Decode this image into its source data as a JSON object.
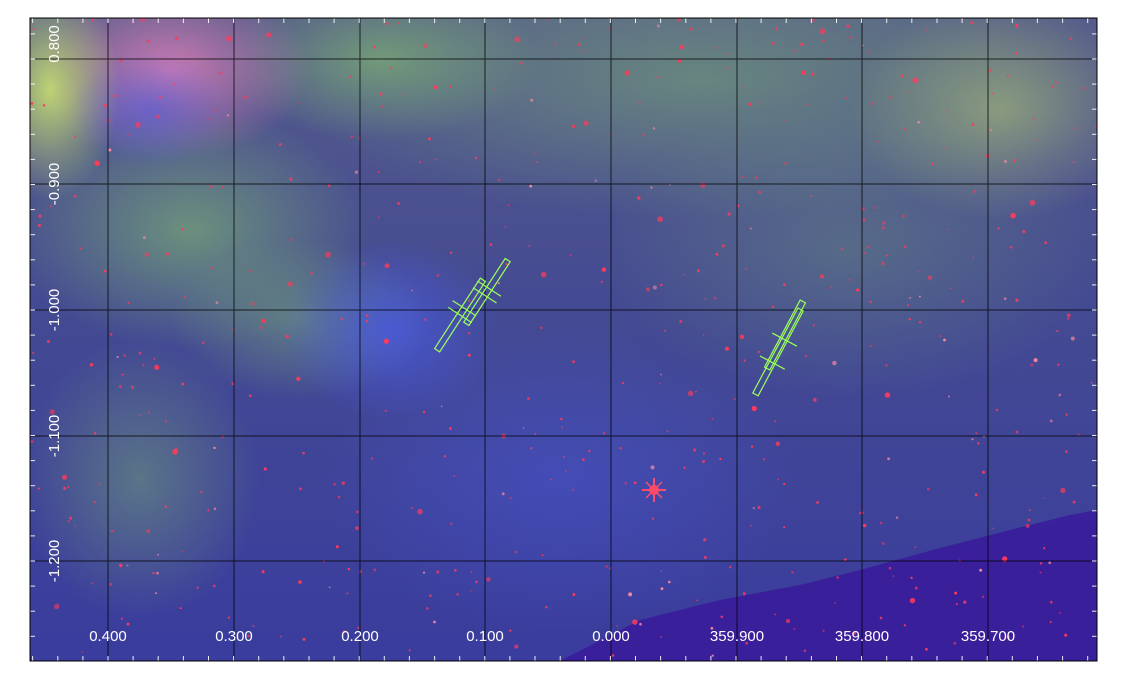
{
  "image": {
    "x_axis_labels": [
      "0.400",
      "0.300",
      "0.200",
      "0.100",
      "0.000",
      "359.900",
      "359.800",
      "359.700"
    ],
    "y_axis_labels": [
      "0.800",
      "-0.900",
      "-1.000",
      "-1.100",
      "-1.200"
    ]
  },
  "colors": {
    "background_blue": "#3b3f95",
    "nebula_green": "#7fbf6a",
    "nebula_pink": "#e070b0",
    "star_red": "#ff3a5a",
    "edge_purple": "#3a1a9a",
    "grid": "#000000",
    "region_marker": "#9bff5a",
    "label": "#ffffff"
  }
}
